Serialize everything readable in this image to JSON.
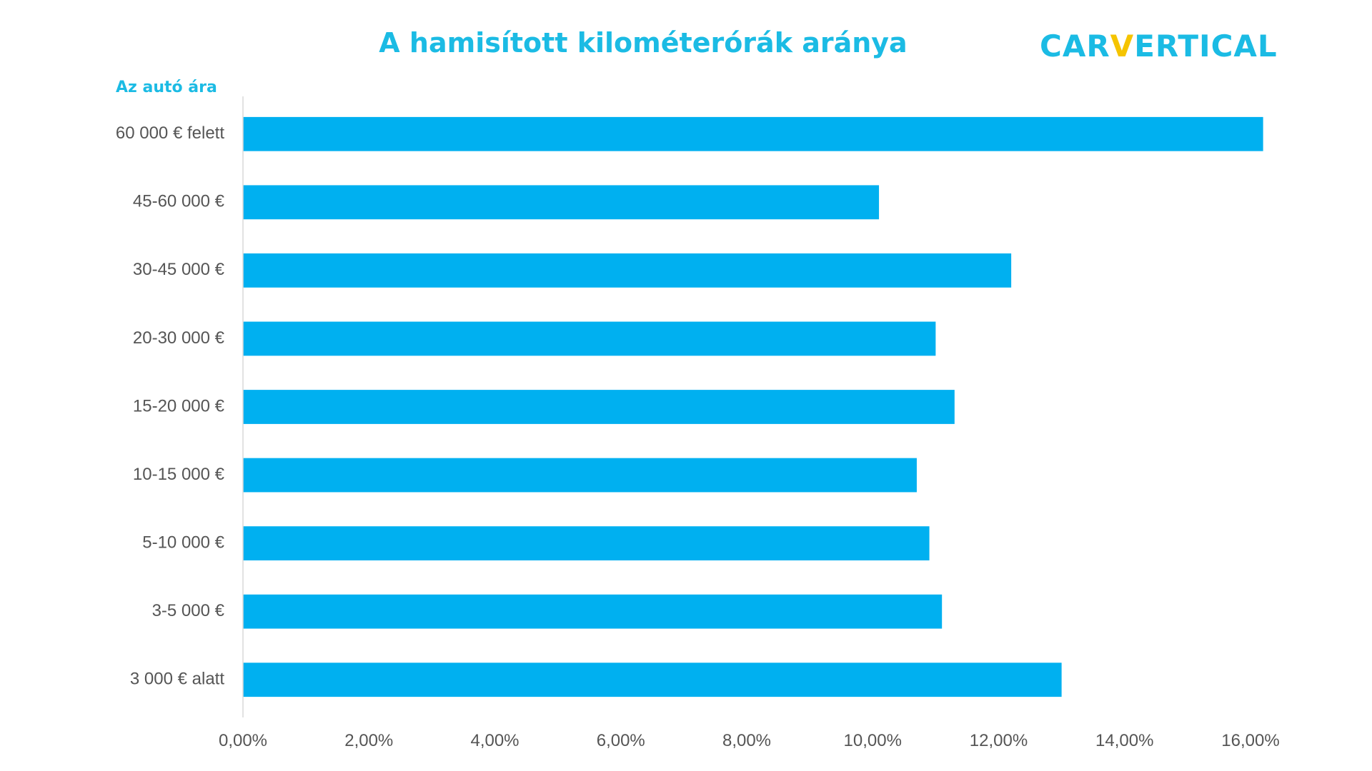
{
  "chart_data": {
    "type": "bar",
    "orientation": "horizontal",
    "title": "A hamisított kilométerórák aránya",
    "ylabel": "Az autó ára",
    "xlabel": "",
    "categories": [
      "60 000 € felett",
      "45-60 000 €",
      "30-45 000 €",
      "20-30 000 €",
      "15-20 000 €",
      "10-15 000 €",
      "5-10 000 €",
      "3-5 000 €",
      "3 000 € alatt"
    ],
    "values": [
      16.2,
      10.1,
      12.2,
      11.0,
      11.3,
      10.7,
      10.9,
      11.1,
      13.0
    ],
    "xlim": [
      0,
      16
    ],
    "xticks": [
      "0,00%",
      "2,00%",
      "4,00%",
      "6,00%",
      "8,00%",
      "10,00%",
      "12,00%",
      "14,00%",
      "16,00%"
    ],
    "grid": false,
    "legend": "none",
    "bar_color": "#00b0f0"
  },
  "logo": {
    "part1": "CAR",
    "accent": "V",
    "part2": "ERTICAL",
    "color": "#1bbbe4",
    "accent_color": "#f5c400"
  }
}
